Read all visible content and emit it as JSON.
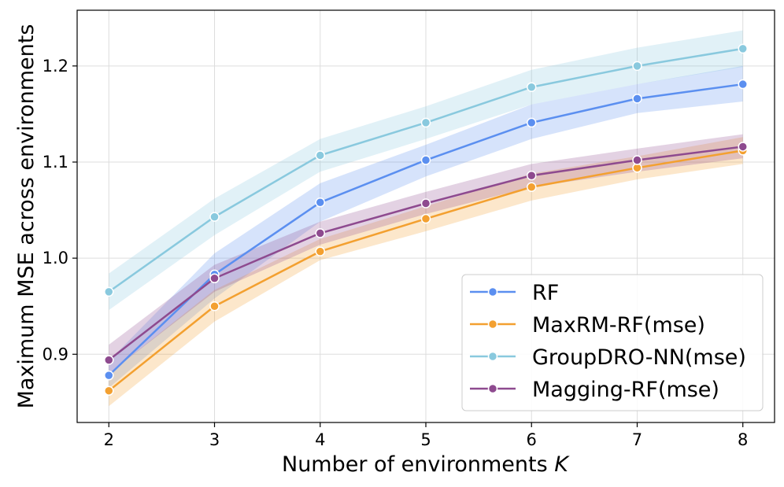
{
  "chart_data": {
    "type": "line",
    "xlabel": "Number of environments",
    "xlabel_symbol": "K",
    "ylabel": "Maximum MSE across environments",
    "x": [
      2,
      3,
      4,
      5,
      6,
      7,
      8
    ],
    "x_ticks": [
      "2",
      "3",
      "4",
      "5",
      "6",
      "7",
      "8"
    ],
    "y_ticks": [
      0.9,
      1.0,
      1.1,
      1.2
    ],
    "y_tick_labels": [
      "0.9",
      "1.0",
      "1.1",
      "1.2"
    ],
    "xlim": [
      1.7,
      8.3
    ],
    "ylim": [
      0.829,
      1.258
    ],
    "grid": true,
    "legend_position": "lower-right",
    "series": [
      {
        "name": "RF",
        "color": "#5b8ff0",
        "values": [
          0.878,
          0.983,
          1.058,
          1.102,
          1.141,
          1.166,
          1.181
        ],
        "band_lower": [
          0.865,
          0.958,
          1.038,
          1.085,
          1.124,
          1.151,
          1.163
        ],
        "band_upper": [
          0.893,
          1.005,
          1.078,
          1.118,
          1.16,
          1.181,
          1.2
        ]
      },
      {
        "name": "MaxRM-RF(mse)",
        "color": "#f3a030",
        "values": [
          0.862,
          0.95,
          1.007,
          1.041,
          1.074,
          1.094,
          1.112
        ],
        "band_lower": [
          0.846,
          0.934,
          0.998,
          1.028,
          1.06,
          1.082,
          1.098
        ],
        "band_upper": [
          0.88,
          0.967,
          1.02,
          1.054,
          1.088,
          1.106,
          1.126
        ]
      },
      {
        "name": "GroupDRO-NN(mse)",
        "color": "#89c9de",
        "values": [
          0.965,
          1.043,
          1.107,
          1.141,
          1.178,
          1.2,
          1.218
        ],
        "band_lower": [
          0.946,
          1.024,
          1.09,
          1.124,
          1.16,
          1.181,
          1.199
        ],
        "band_upper": [
          0.984,
          1.062,
          1.124,
          1.158,
          1.196,
          1.219,
          1.237
        ]
      },
      {
        "name": "Magging-RF(mse)",
        "color": "#8e4a8f",
        "values": [
          0.894,
          0.979,
          1.026,
          1.057,
          1.086,
          1.102,
          1.116
        ],
        "band_lower": [
          0.88,
          0.965,
          1.014,
          1.046,
          1.074,
          1.09,
          1.104
        ],
        "band_upper": [
          0.91,
          0.993,
          1.038,
          1.069,
          1.098,
          1.114,
          1.129
        ]
      }
    ]
  }
}
